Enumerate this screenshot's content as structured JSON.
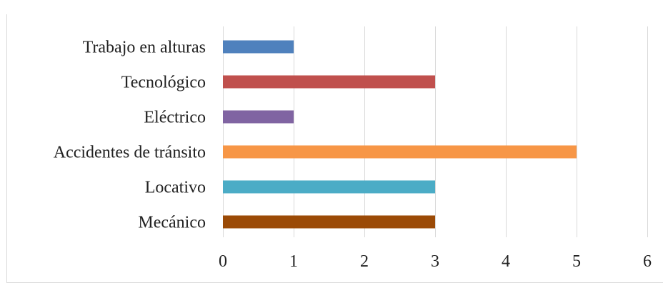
{
  "chart_data": {
    "type": "bar",
    "orientation": "horizontal",
    "title": "",
    "xlabel": "",
    "ylabel": "",
    "categories": [
      "Trabajo en alturas",
      "Tecnológico",
      "Eléctrico",
      "Accidentes de tránsito",
      "Locativo",
      "Mecánico"
    ],
    "values": [
      1,
      3,
      1,
      5,
      3,
      3
    ],
    "colors": [
      "#4f81bd",
      "#c0504d",
      "#8064a2",
      "#f79646",
      "#4bacc6",
      "#9b4a06"
    ],
    "xlim": [
      0,
      6
    ],
    "x_ticks": [
      "0",
      "1",
      "2",
      "3",
      "4",
      "5",
      "6"
    ],
    "grid": "vertical",
    "legend": "none"
  }
}
